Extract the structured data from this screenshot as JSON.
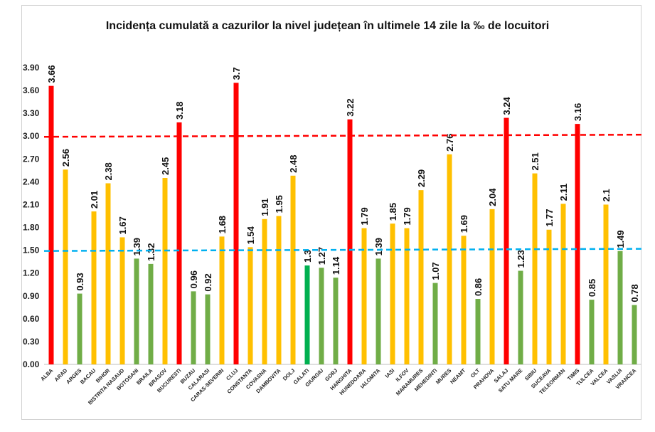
{
  "chart_data": {
    "type": "bar",
    "title": "Incidența cumulată a cazurilor la nivel județean în ultimele 14 zile la ‰ de locuitori",
    "xlabel": "",
    "ylabel": "",
    "ylim": [
      0,
      3.9
    ],
    "yticks": [
      "0.00",
      "0.30",
      "0.60",
      "0.90",
      "1.20",
      "1.50",
      "1.80",
      "2.10",
      "2.40",
      "2.70",
      "3.00",
      "3.30",
      "3.60",
      "3.90"
    ],
    "grid": false,
    "categories": [
      "ALBA",
      "ARAD",
      "ARGES",
      "BACAU",
      "BIHOR",
      "BISTRITA NASAUD",
      "BOTOSANI",
      "BRAILA",
      "BRASOV",
      "BUCURESTI",
      "BUZAU",
      "CALARASI",
      "CARAS-SEVERIN",
      "CLUJ",
      "CONSTANTA",
      "COVASNA",
      "DAMBOVITA",
      "DOLJ",
      "GALATI",
      "GIURGIU",
      "GORJ",
      "HARGHITA",
      "HUNEDOARA",
      "IALOMITA",
      "IASI",
      "ILFOV",
      "MARAMURES",
      "MEHEDINTI",
      "MURES",
      "NEAMT",
      "OLT",
      "PRAHOVA",
      "SALAJ",
      "SATU MARE",
      "SIBIU",
      "SUCEAVA",
      "TELEORMAN",
      "TIMIS",
      "TULCEA",
      "VALCEA",
      "VASLUI",
      "VRANCEA"
    ],
    "values": [
      3.66,
      2.56,
      0.93,
      2.01,
      2.38,
      1.67,
      1.39,
      1.32,
      2.45,
      3.18,
      0.96,
      0.92,
      1.68,
      3.7,
      1.54,
      1.91,
      1.95,
      2.48,
      1.3,
      1.27,
      1.14,
      3.22,
      1.79,
      1.39,
      1.85,
      1.79,
      2.29,
      1.07,
      2.76,
      1.69,
      0.86,
      2.04,
      3.24,
      1.23,
      2.51,
      1.77,
      2.11,
      3.16,
      0.85,
      2.1,
      1.49,
      0.78
    ],
    "data_labels": [
      "3.66",
      "2.56",
      "0.93",
      "2.01",
      "2.38",
      "1.67",
      "1.39",
      "1.32",
      "2.45",
      "3.18",
      "0.96",
      "0.92",
      "1.68",
      "3.7",
      "1.54",
      "1.91",
      "1.95",
      "2.48",
      "1.3",
      "1.27",
      "1.14",
      "3.22",
      "1.79",
      "1.39",
      "1.85",
      "1.79",
      "2.29",
      "1.07",
      "2.76",
      "1.69",
      "0.86",
      "2.04",
      "3.24",
      "1.23",
      "2.51",
      "1.77",
      "2.11",
      "3.16",
      "0.85",
      "2.1",
      "1.49",
      "0.78"
    ],
    "bar_colors": [
      "#ff0000",
      "#ffc000",
      "#70ad47",
      "#ffc000",
      "#ffc000",
      "#ffc000",
      "#70ad47",
      "#70ad47",
      "#ffc000",
      "#ff0000",
      "#70ad47",
      "#70ad47",
      "#ffc000",
      "#ff0000",
      "#ffc000",
      "#ffc000",
      "#ffc000",
      "#ffc000",
      "#00b050",
      "#70ad47",
      "#70ad47",
      "#ff0000",
      "#ffc000",
      "#70ad47",
      "#ffc000",
      "#ffc000",
      "#ffc000",
      "#70ad47",
      "#ffc000",
      "#ffc000",
      "#70ad47",
      "#ffc000",
      "#ff0000",
      "#70ad47",
      "#ffc000",
      "#ffc000",
      "#ffc000",
      "#ff0000",
      "#70ad47",
      "#ffc000",
      "#70ad47",
      "#70ad47"
    ],
    "reference_lines": [
      {
        "value": 3.0,
        "color": "#ff0000",
        "style": "dashed"
      },
      {
        "value": 1.5,
        "color": "#00b0f0",
        "style": "dashed"
      }
    ]
  }
}
